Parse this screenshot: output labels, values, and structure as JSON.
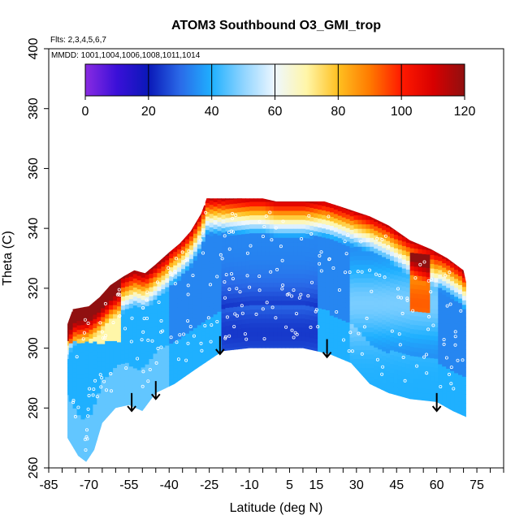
{
  "chart_data": {
    "type": "heatmap",
    "title": "ATOM3 Southbound O3_GMI_trop",
    "flights_label": "Flts: 2,3,4,5,6,7",
    "dates_label": "MMDD: 1001,1004,1006,1008,1011,1014",
    "xlabel": "Latitude (deg N)",
    "ylabel": "Theta (C)",
    "xlim": [
      -85,
      85
    ],
    "ylim": [
      260,
      400
    ],
    "x_ticks": [
      -85,
      -70,
      -55,
      -40,
      -25,
      -10,
      5,
      15,
      30,
      45,
      60,
      75
    ],
    "y_ticks": [
      260,
      280,
      300,
      320,
      340,
      360,
      380,
      400
    ],
    "colorbar": {
      "ticks": [
        0,
        20,
        40,
        60,
        80,
        100,
        120
      ],
      "range": [
        0,
        120
      ],
      "stops": [
        {
          "v": 0,
          "c": "#8a2be2"
        },
        {
          "v": 10,
          "c": "#3a10d8"
        },
        {
          "v": 20,
          "c": "#0a18b8"
        },
        {
          "v": 30,
          "c": "#2a6ae8"
        },
        {
          "v": 40,
          "c": "#1fb0ff"
        },
        {
          "v": 50,
          "c": "#8fd4ff"
        },
        {
          "v": 60,
          "c": "#eef7ff"
        },
        {
          "v": 70,
          "c": "#fff6a8"
        },
        {
          "v": 80,
          "c": "#ffc020"
        },
        {
          "v": 90,
          "c": "#ff7a00"
        },
        {
          "v": 100,
          "c": "#ff1a00"
        },
        {
          "v": 110,
          "c": "#d80000"
        },
        {
          "v": 120,
          "c": "#901010"
        }
      ]
    },
    "curtain_top": [
      {
        "x": -78,
        "y": 308
      },
      {
        "x": -76,
        "y": 313
      },
      {
        "x": -70,
        "y": 314
      },
      {
        "x": -66,
        "y": 317
      },
      {
        "x": -62,
        "y": 321
      },
      {
        "x": -57,
        "y": 324
      },
      {
        "x": -53,
        "y": 326
      },
      {
        "x": -49,
        "y": 325
      },
      {
        "x": -45,
        "y": 328
      },
      {
        "x": -40,
        "y": 332
      },
      {
        "x": -36,
        "y": 335
      },
      {
        "x": -32,
        "y": 339
      },
      {
        "x": -28,
        "y": 345
      },
      {
        "x": -26,
        "y": 350
      },
      {
        "x": -5,
        "y": 350
      },
      {
        "x": 0,
        "y": 349
      },
      {
        "x": 10,
        "y": 349
      },
      {
        "x": 18,
        "y": 349
      },
      {
        "x": 25,
        "y": 347
      },
      {
        "x": 35,
        "y": 344
      },
      {
        "x": 42,
        "y": 341
      },
      {
        "x": 50,
        "y": 336
      },
      {
        "x": 58,
        "y": 333
      },
      {
        "x": 64,
        "y": 330
      },
      {
        "x": 70,
        "y": 326
      },
      {
        "x": 71,
        "y": 322
      }
    ],
    "curtain_bottom": [
      {
        "x": -78,
        "y": 270
      },
      {
        "x": -74,
        "y": 264
      },
      {
        "x": -71,
        "y": 262
      },
      {
        "x": -68,
        "y": 266
      },
      {
        "x": -65,
        "y": 275
      },
      {
        "x": -60,
        "y": 280
      },
      {
        "x": -55,
        "y": 281
      },
      {
        "x": -50,
        "y": 279
      },
      {
        "x": -45,
        "y": 285
      },
      {
        "x": -38,
        "y": 288
      },
      {
        "x": -30,
        "y": 293
      },
      {
        "x": -20,
        "y": 299
      },
      {
        "x": -10,
        "y": 300
      },
      {
        "x": 0,
        "y": 300
      },
      {
        "x": 10,
        "y": 300
      },
      {
        "x": 20,
        "y": 298
      },
      {
        "x": 28,
        "y": 295
      },
      {
        "x": 35,
        "y": 288
      },
      {
        "x": 42,
        "y": 285
      },
      {
        "x": 50,
        "y": 283
      },
      {
        "x": 60,
        "y": 282
      },
      {
        "x": 66,
        "y": 279
      },
      {
        "x": 71,
        "y": 277
      }
    ],
    "vertical_profiles": [
      {
        "x": -54,
        "y_top": 285,
        "y_bottom": 279
      },
      {
        "x": -45,
        "y_top": 289,
        "y_bottom": 283
      },
      {
        "x": -21,
        "y_top": 304,
        "y_bottom": 298
      },
      {
        "x": 19,
        "y_top": 303,
        "y_bottom": 297
      },
      {
        "x": 60,
        "y_top": 285,
        "y_bottom": 279
      }
    ]
  }
}
